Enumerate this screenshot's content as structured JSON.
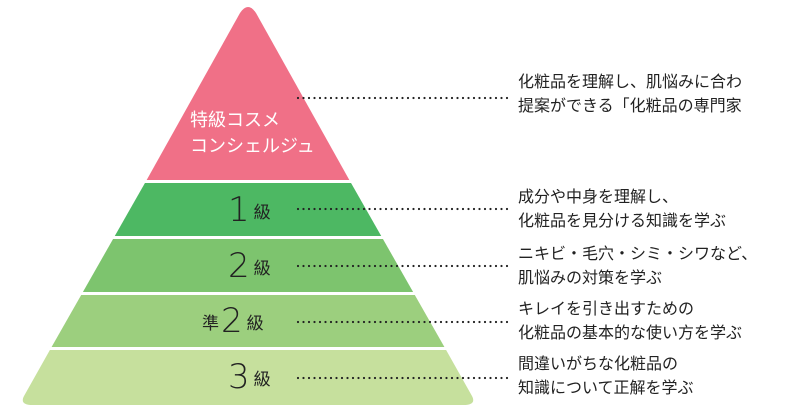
{
  "colors": {
    "tier_top": "#f07087",
    "tier_1": "#4db863",
    "tier_2": "#7dc46e",
    "tier_pre2": "#9ccf7e",
    "tier_3": "#c6e09d",
    "leader": "#222222"
  },
  "tiers": [
    {
      "label_line1": "特級コスメ",
      "label_line2": "コンシェルジュ",
      "desc_line1": "化粧品を理解し、肌悩みに合わ",
      "desc_line2": "提案ができる「化粧品の専門家"
    },
    {
      "prefix": "",
      "number": "1",
      "suffix": "級",
      "desc_line1": "成分や中身を理解し、",
      "desc_line2": "化粧品を見分ける知識を学ぶ"
    },
    {
      "prefix": "",
      "number": "2",
      "suffix": "級",
      "desc_line1": "ニキビ・毛穴・シミ・シワなど、",
      "desc_line2": "肌悩みの対策を学ぶ"
    },
    {
      "prefix": "準",
      "number": "2",
      "suffix": "級",
      "desc_line1": "キレイを引き出すための",
      "desc_line2": "化粧品の基本的な使い方を学ぶ"
    },
    {
      "prefix": "",
      "number": "3",
      "suffix": "級",
      "desc_line1": "間違いがちな化粧品の",
      "desc_line2": "知識について正解を学ぶ"
    }
  ]
}
